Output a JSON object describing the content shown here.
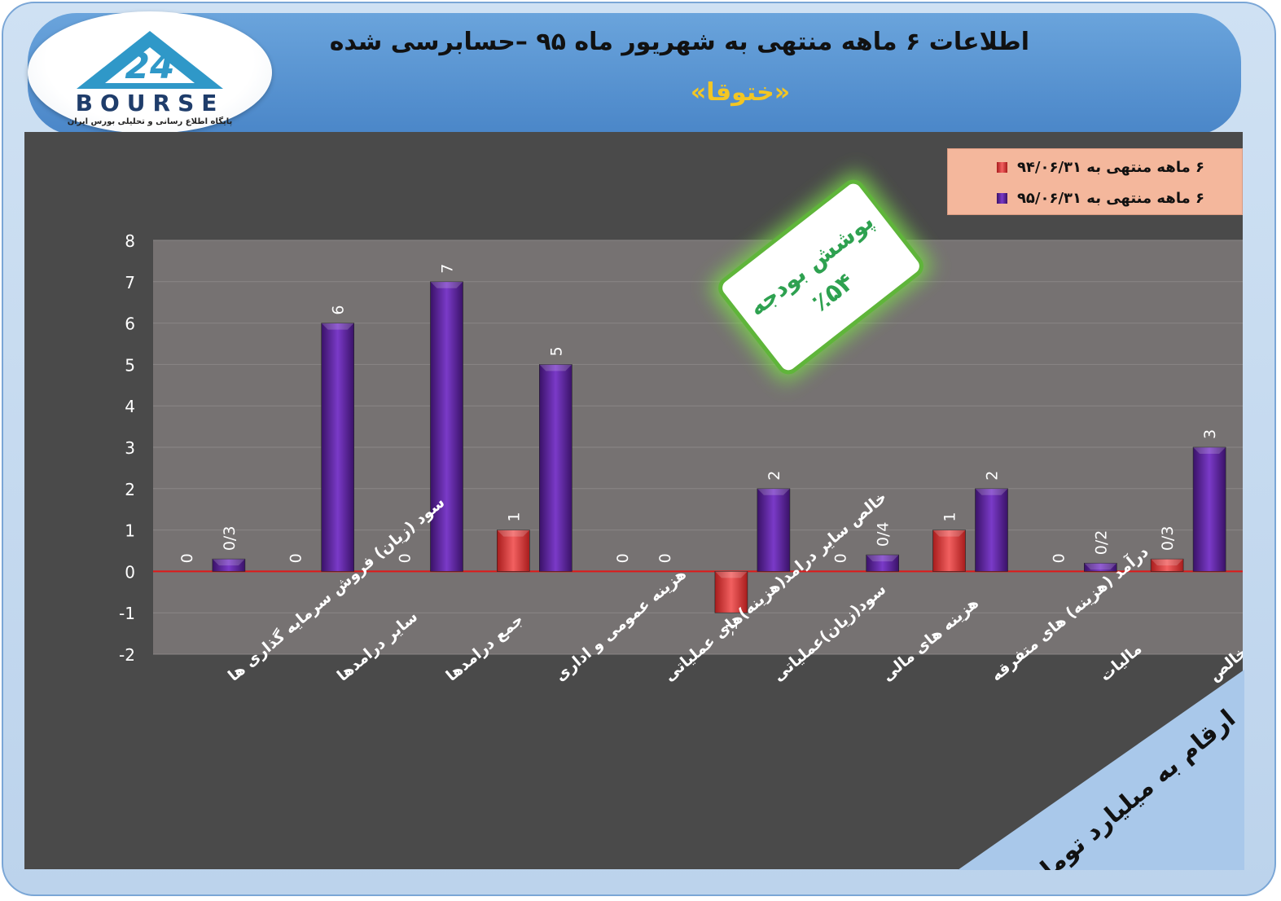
{
  "header": {
    "title": "اطلاعات ۶  ماهه منتهی به شهریور ماه ۹۵ –حسابرسی شده",
    "subtitle": "«ختوقا»"
  },
  "logo": {
    "name": "BOURSE",
    "caption": "پایگاه اطلاع رسانی و تحلیلی بورس ایران",
    "accent": "#2f98c8"
  },
  "badge": {
    "line1": "پوشش بودجه",
    "line2": "٪۵۴"
  },
  "note": {
    "text": "ارقام به میلیارد تومان"
  },
  "legend": [
    {
      "label": "۶ ماهه منتهی به ۹۴/۰۶/۳۱",
      "color": "#e23a3a"
    },
    {
      "label": "۶ ماهه منتهی به ۹۵/۰۶/۳۱",
      "color": "#6a2ca8"
    }
  ],
  "chart_data": {
    "type": "bar",
    "categories": [
      "سود (زیان) فروش سرمایه گذاری ها",
      "سایر درامدها",
      "جمع درامدها",
      "هزینه عمومی و اداری",
      "خالص سایر درامد(هزینه)های عملیاتی",
      "سود(زیان)عملیاتی",
      "هزینه های مالی",
      "درآمد (هزینه) های متفرقه",
      "مالیات",
      "سود(زیان) خالص"
    ],
    "series": [
      {
        "name": "۶ ماهه منتهی به ۹۴/۰۶/۳۱",
        "color": "#e23a3a",
        "values": [
          0,
          0,
          0,
          1,
          0,
          -1,
          0,
          1,
          0,
          0.3
        ],
        "labels": [
          "0",
          "0",
          "0",
          "1",
          "0",
          "-1",
          "0",
          "1",
          "0",
          "0/3"
        ]
      },
      {
        "name": "۶ ماهه منتهی به ۹۵/۰۶/۳۱",
        "color": "#6a2ca8",
        "values": [
          0.3,
          6,
          7,
          5,
          0,
          2,
          0.4,
          2,
          0.2,
          3
        ],
        "labels": [
          "0/3",
          "6",
          "7",
          "5",
          "0",
          "2",
          "0/4",
          "2",
          "0/2",
          "3"
        ]
      }
    ],
    "ylim": [
      -2,
      8
    ],
    "yticks": [
      8,
      7,
      6,
      5,
      4,
      3,
      2,
      1,
      0,
      -1,
      -2
    ]
  }
}
